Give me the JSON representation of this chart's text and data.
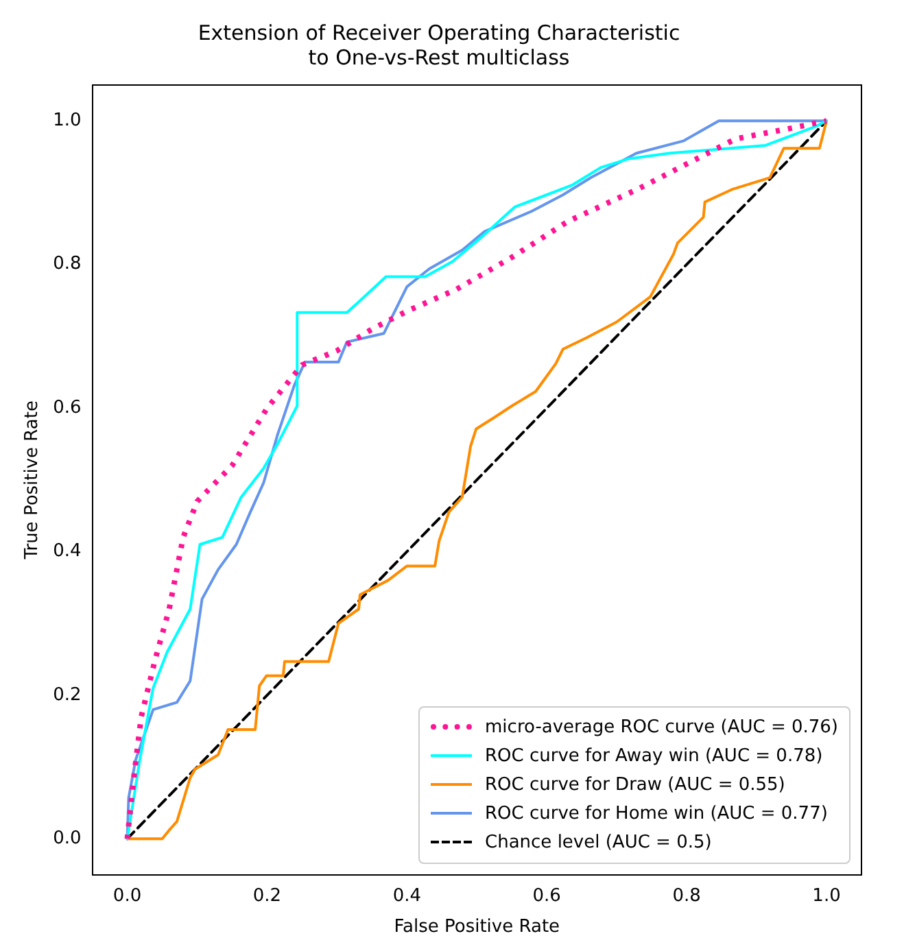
{
  "chart_data": {
    "type": "line",
    "title": "Extension of Receiver Operating Characteristic\nto One-vs-Rest multiclass",
    "xlabel": "False Positive Rate",
    "ylabel": "True Positive Rate",
    "xlim": [
      -0.05,
      1.05
    ],
    "ylim": [
      -0.05,
      1.05
    ],
    "xticks": [
      {
        "value": 0,
        "label": "0.0"
      },
      {
        "value": 0.2,
        "label": "0.2"
      },
      {
        "value": 0.4,
        "label": "0.4"
      },
      {
        "value": 0.6,
        "label": "0.6"
      },
      {
        "value": 0.8,
        "label": "0.8"
      },
      {
        "value": 1,
        "label": "1.0"
      }
    ],
    "yticks": [
      {
        "value": 0,
        "label": "0.0"
      },
      {
        "value": 0.2,
        "label": "0.2"
      },
      {
        "value": 0.4,
        "label": "0.4"
      },
      {
        "value": 0.6,
        "label": "0.6"
      },
      {
        "value": 0.8,
        "label": "0.8"
      },
      {
        "value": 1,
        "label": "1.0"
      }
    ],
    "grid": false,
    "legend": "bottom right",
    "marker": "none",
    "series": [
      {
        "name": "micro-average ROC curve (AUC = 0.76)",
        "color": "#ff1493",
        "line_style": "dotted",
        "x": [
          0,
          0.01,
          0.02,
          0.04,
          0.06,
          0.08,
          0.1,
          0.15,
          0.2,
          0.25,
          0.3,
          0.35,
          0.4,
          0.47,
          0.55,
          0.63,
          0.73,
          0.87,
          0.95,
          1
        ],
        "values": [
          0,
          0.09,
          0.17,
          0.25,
          0.32,
          0.42,
          0.47,
          0.52,
          0.6,
          0.66,
          0.68,
          0.71,
          0.735,
          0.765,
          0.81,
          0.86,
          0.905,
          0.975,
          0.99,
          1
        ]
      },
      {
        "name": "ROC curve for Away win (AUC = 0.78)",
        "color": "#00ffff",
        "line_style": "solid",
        "x": [
          0,
          0.005,
          0.018,
          0.037,
          0.057,
          0.09,
          0.104,
          0.136,
          0.163,
          0.195,
          0.215,
          0.243,
          0.243,
          0.314,
          0.33,
          0.37,
          0.426,
          0.465,
          0.509,
          0.554,
          0.637,
          0.677,
          0.716,
          0.775,
          0.913,
          0.984,
          1
        ],
        "values": [
          0,
          0.03,
          0.11,
          0.21,
          0.26,
          0.32,
          0.41,
          0.42,
          0.476,
          0.516,
          0.55,
          0.603,
          0.733,
          0.733,
          0.747,
          0.783,
          0.783,
          0.804,
          0.84,
          0.88,
          0.911,
          0.935,
          0.947,
          0.955,
          0.966,
          0.992,
          1
        ]
      },
      {
        "name": "ROC curve for Draw (AUC = 0.55)",
        "color": "#ff8c00",
        "line_style": "solid",
        "x": [
          0,
          0.05,
          0.06,
          0.071,
          0.09,
          0.097,
          0.13,
          0.144,
          0.183,
          0.189,
          0.199,
          0.223,
          0.225,
          0.288,
          0.302,
          0.331,
          0.333,
          0.373,
          0.4,
          0.44,
          0.446,
          0.46,
          0.479,
          0.491,
          0.499,
          0.525,
          0.55,
          0.584,
          0.613,
          0.623,
          0.657,
          0.7,
          0.748,
          0.781,
          0.787,
          0.824,
          0.826,
          0.866,
          0.919,
          0.939,
          0.99,
          1
        ],
        "values": [
          0,
          0,
          0.012,
          0.024,
          0.085,
          0.097,
          0.117,
          0.152,
          0.152,
          0.213,
          0.227,
          0.227,
          0.247,
          0.247,
          0.3,
          0.32,
          0.34,
          0.36,
          0.38,
          0.38,
          0.415,
          0.455,
          0.476,
          0.547,
          0.571,
          0.587,
          0.603,
          0.623,
          0.662,
          0.682,
          0.698,
          0.72,
          0.755,
          0.814,
          0.83,
          0.866,
          0.887,
          0.905,
          0.921,
          0.962,
          0.962,
          1
        ]
      },
      {
        "name": "ROC curve for Home win (AUC = 0.77)",
        "color": "#6495ed",
        "line_style": "solid",
        "x": [
          0,
          0.002,
          0.012,
          0.037,
          0.071,
          0.09,
          0.107,
          0.13,
          0.156,
          0.176,
          0.195,
          0.215,
          0.239,
          0.254,
          0.302,
          0.314,
          0.367,
          0.4,
          0.432,
          0.479,
          0.511,
          0.578,
          0.623,
          0.663,
          0.728,
          0.795,
          0.846,
          1
        ],
        "values": [
          0,
          0.057,
          0.11,
          0.18,
          0.19,
          0.22,
          0.334,
          0.375,
          0.41,
          0.455,
          0.496,
          0.563,
          0.632,
          0.664,
          0.664,
          0.692,
          0.704,
          0.769,
          0.794,
          0.82,
          0.846,
          0.874,
          0.897,
          0.921,
          0.955,
          0.972,
          1,
          1
        ]
      },
      {
        "name": "Chance level (AUC = 0.5)",
        "color": "#000000",
        "line_style": "dashed",
        "x": [
          0,
          1
        ],
        "values": [
          0,
          1
        ]
      }
    ]
  }
}
